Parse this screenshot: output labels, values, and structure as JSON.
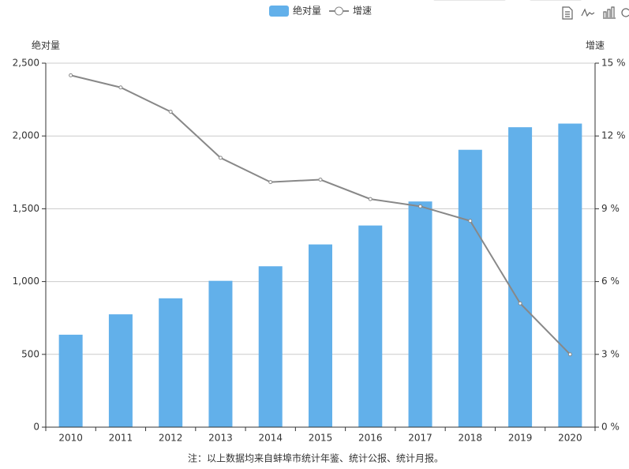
{
  "chart_data": {
    "type": "bar-line",
    "categories": [
      "2010",
      "2011",
      "2012",
      "2013",
      "2014",
      "2015",
      "2016",
      "2017",
      "2018",
      "2019",
      "2020"
    ],
    "series": [
      {
        "name": "绝对量",
        "type": "bar",
        "color": "#62b0ea",
        "values": [
          635,
          775,
          885,
          1005,
          1105,
          1255,
          1385,
          1550,
          1905,
          2060,
          2085
        ]
      },
      {
        "name": "增速",
        "type": "line",
        "axis": "y2",
        "color": "#888888",
        "values": [
          14.5,
          14.0,
          13.0,
          11.1,
          10.1,
          10.2,
          9.4,
          9.1,
          8.5,
          5.1,
          3.0
        ]
      }
    ],
    "y_label": "绝对量",
    "y2_label": "增速",
    "ylim": [
      0,
      2500
    ],
    "yticks": [
      0,
      500,
      {
        "value": 1000,
        "label": "1,000"
      },
      {
        "value": 1500,
        "label": "1,500"
      },
      {
        "value": 2000,
        "label": "2,000"
      },
      {
        "value": 2500,
        "label": "2,500"
      }
    ],
    "y2lim": [
      0,
      15
    ],
    "y2ticks": [
      {
        "value": 0,
        "label": "0 %"
      },
      {
        "value": 3,
        "label": "3 %"
      },
      {
        "value": 6,
        "label": "6 %"
      },
      {
        "value": 9,
        "label": "9 %"
      },
      {
        "value": 12,
        "label": "12 %"
      },
      {
        "value": 15,
        "label": "15 %"
      }
    ],
    "grid": true,
    "note": "注：以上数据均来自蚌埠市统计年鉴、统计公报、统计月报。"
  }
}
